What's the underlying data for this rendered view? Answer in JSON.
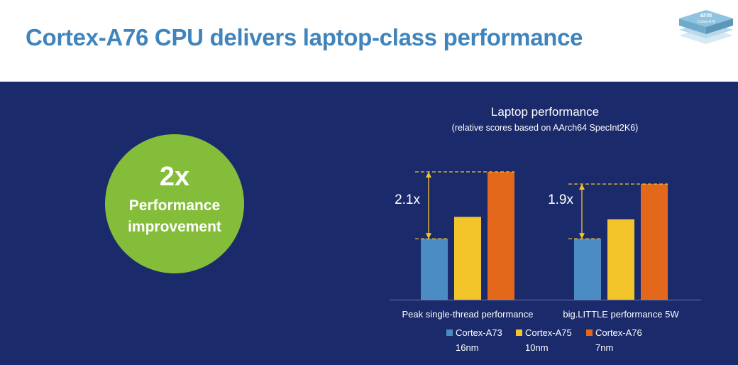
{
  "header": {
    "title": "Cortex-A76 CPU delivers laptop-class performance",
    "logo_text": "arm",
    "logo_subtext": "Cortex-A76"
  },
  "callout": {
    "value": "2x",
    "label": "Performance improvement"
  },
  "colors": {
    "panel": "#1b2a6b",
    "title": "#3f84bc",
    "circle": "#84bd3a",
    "a73": "#4a8cc3",
    "a75": "#f4c52b",
    "a76": "#e3681c",
    "dashed_line": "#f4c52b"
  },
  "chart_data": {
    "type": "bar",
    "title": "Laptop performance",
    "subtitle": "(relative scores based on AArch64 SpecInt2K6)",
    "categories": [
      "Peak single-thread performance",
      "big.LITTLE performance 5W"
    ],
    "series": [
      {
        "name": "Cortex-A73 16nm",
        "label_line1": "Cortex-A73",
        "label_line2": "16nm",
        "color": "#4a8cc3",
        "values": [
          1.0,
          1.0
        ]
      },
      {
        "name": "Cortex-A75 10nm",
        "label_line1": "Cortex-A75",
        "label_line2": "10nm",
        "color": "#f4c52b",
        "values": [
          1.36,
          1.32
        ]
      },
      {
        "name": "Cortex-A76 7nm",
        "label_line1": "Cortex-A76",
        "label_line2": "7nm",
        "color": "#e3681c",
        "values": [
          2.1,
          1.9
        ]
      }
    ],
    "annotations": [
      "2.1x",
      "1.9x"
    ],
    "ylim": [
      0,
      2.1
    ],
    "legend": "bottom",
    "grid": false
  }
}
